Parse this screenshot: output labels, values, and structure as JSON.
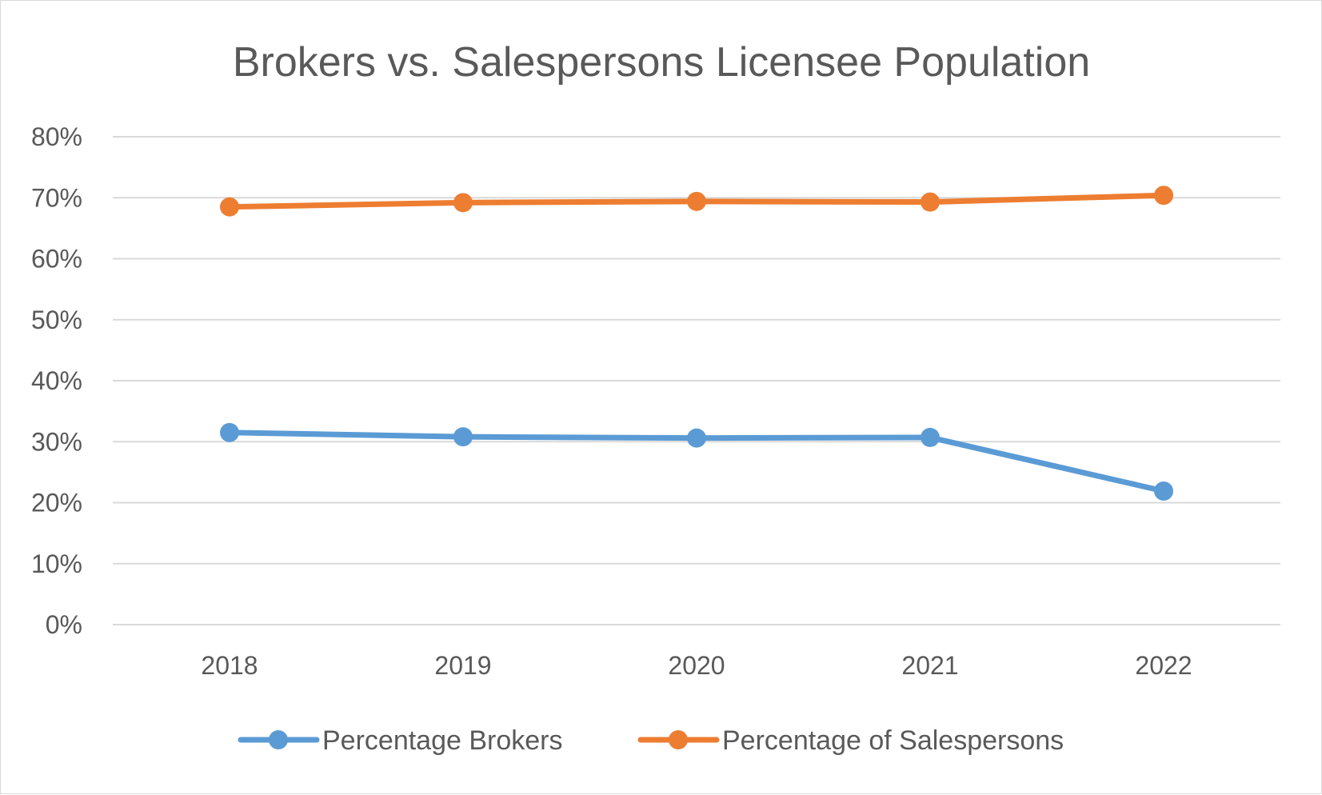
{
  "chart_data": {
    "type": "line",
    "title": "Brokers vs. Salespersons Licensee Population",
    "xlabel": "",
    "ylabel": "",
    "categories": [
      "2018",
      "2019",
      "2020",
      "2021",
      "2022"
    ],
    "ylim": [
      0,
      80
    ],
    "yticks": [
      0,
      10,
      20,
      30,
      40,
      50,
      60,
      70,
      80
    ],
    "ytick_labels": [
      "0%",
      "10%",
      "20%",
      "30%",
      "40%",
      "50%",
      "60%",
      "70%",
      "80%"
    ],
    "grid": true,
    "legend_position": "bottom",
    "series": [
      {
        "name": "Percentage Brokers",
        "values": [
          31.5,
          30.8,
          30.6,
          30.7,
          21.9
        ],
        "color": "#5b9bd5"
      },
      {
        "name": "Percentage of Salespersons",
        "values": [
          68.5,
          69.2,
          69.4,
          69.3,
          70.4
        ],
        "color": "#ed7d31"
      }
    ]
  }
}
